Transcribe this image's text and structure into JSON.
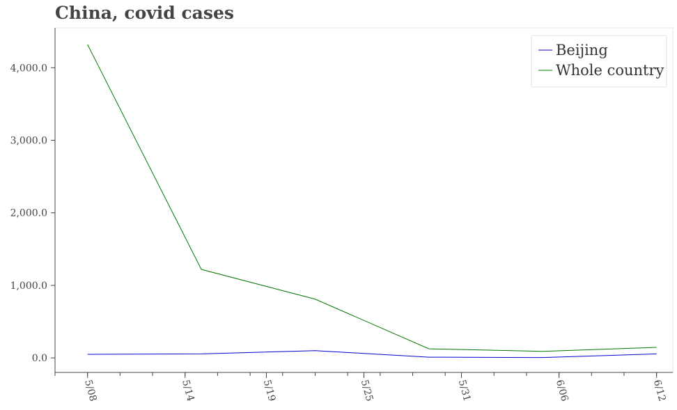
{
  "chart_data": {
    "type": "line",
    "title": "China, covid cases",
    "xlabel": "",
    "ylabel": "",
    "x_ticks": [
      "5/08",
      "5/14",
      "5/19",
      "5/25",
      "5/31",
      "6/06",
      "6/12"
    ],
    "y_ticks": [
      "0.0",
      "1,000.0",
      "2,000.0",
      "3,000.0",
      "4,000.0"
    ],
    "ylim": [
      -200,
      4550
    ],
    "xlim": [
      "2022-05-06",
      "2022-06-13"
    ],
    "legend_position": "top-right",
    "grid": false,
    "series": [
      {
        "name": "Beijing",
        "color": "#0000cc",
        "points": [
          {
            "x": "2022-05-08",
            "y": 50
          },
          {
            "x": "2022-05-15",
            "y": 55
          },
          {
            "x": "2022-05-22",
            "y": 100
          },
          {
            "x": "2022-05-29",
            "y": 10
          },
          {
            "x": "2022-06-05",
            "y": 5
          },
          {
            "x": "2022-06-12",
            "y": 55
          }
        ]
      },
      {
        "name": "Whole country",
        "color": "#007700",
        "points": [
          {
            "x": "2022-05-08",
            "y": 4320
          },
          {
            "x": "2022-05-15",
            "y": 1220
          },
          {
            "x": "2022-05-22",
            "y": 810
          },
          {
            "x": "2022-05-29",
            "y": 125
          },
          {
            "x": "2022-06-05",
            "y": 90
          },
          {
            "x": "2022-06-12",
            "y": 145
          }
        ]
      }
    ]
  }
}
